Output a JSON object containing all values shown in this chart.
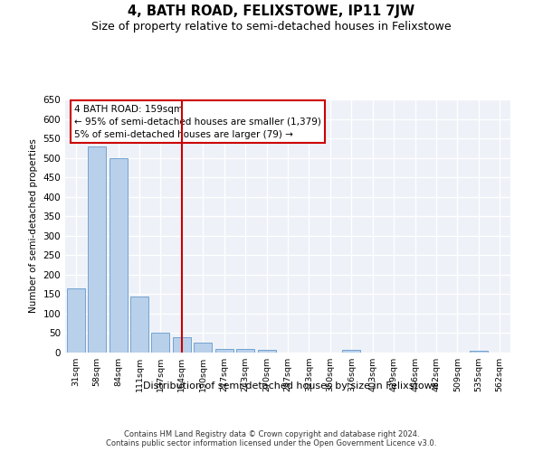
{
  "title": "4, BATH ROAD, FELIXSTOWE, IP11 7JW",
  "subtitle": "Size of property relative to semi-detached houses in Felixstowe",
  "xlabel": "Distribution of semi-detached houses by size in Felixstowe",
  "ylabel": "Number of semi-detached properties",
  "categories": [
    "31sqm",
    "58sqm",
    "84sqm",
    "111sqm",
    "137sqm",
    "164sqm",
    "190sqm",
    "217sqm",
    "243sqm",
    "270sqm",
    "297sqm",
    "323sqm",
    "350sqm",
    "376sqm",
    "403sqm",
    "429sqm",
    "456sqm",
    "482sqm",
    "509sqm",
    "535sqm",
    "562sqm"
  ],
  "values": [
    165,
    530,
    500,
    145,
    50,
    40,
    25,
    10,
    10,
    7,
    0,
    0,
    0,
    6,
    0,
    0,
    0,
    0,
    0,
    5,
    0
  ],
  "bar_color": "#b8d0ea",
  "bar_edge_color": "#6699cc",
  "vline_index": 5,
  "property_label": "4 BATH ROAD: 159sqm",
  "annotation_line1": "← 95% of semi-detached houses are smaller (1,379)",
  "annotation_line2": "5% of semi-detached houses are larger (79) →",
  "vline_color": "#cc0000",
  "annotation_box_edge": "#cc0000",
  "footer_line1": "Contains HM Land Registry data © Crown copyright and database right 2024.",
  "footer_line2": "Contains public sector information licensed under the Open Government Licence v3.0.",
  "ylim": [
    0,
    650
  ],
  "yticks": [
    0,
    50,
    100,
    150,
    200,
    250,
    300,
    350,
    400,
    450,
    500,
    550,
    600,
    650
  ],
  "bg_color": "#eef2f8",
  "title_fontsize": 10.5,
  "subtitle_fontsize": 9
}
